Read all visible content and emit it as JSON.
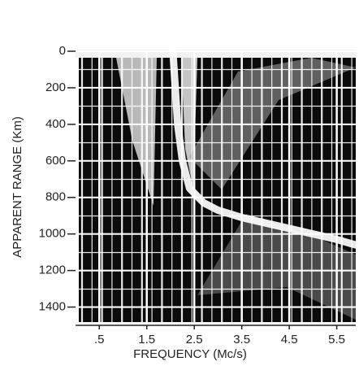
{
  "chart_data": {
    "type": "line",
    "xlabel": "FREQUENCY (Mc/s)",
    "ylabel": "APPARENT RANGE (Km)",
    "xlim": [
      0,
      5.9
    ],
    "ylim": [
      1500,
      0
    ],
    "xticks": [
      {
        "value": 0.5,
        "label": ".5"
      },
      1.5,
      2.5,
      3.5,
      4.5,
      5.5
    ],
    "yticks": [
      0,
      200,
      400,
      600,
      800,
      1000,
      1200,
      1400
    ],
    "grid": true,
    "series": [
      {
        "color": "#ffffff",
        "x": [
          2.05,
          2.1,
          2.15,
          2.25,
          2.4,
          2.7,
          3.0,
          3.5,
          4.0,
          4.5,
          5.0,
          5.5,
          5.9
        ],
        "values": [
          0,
          200,
          400,
          600,
          750,
          830,
          870,
          910,
          940,
          970,
          1000,
          1030,
          1060
        ]
      }
    ]
  }
}
